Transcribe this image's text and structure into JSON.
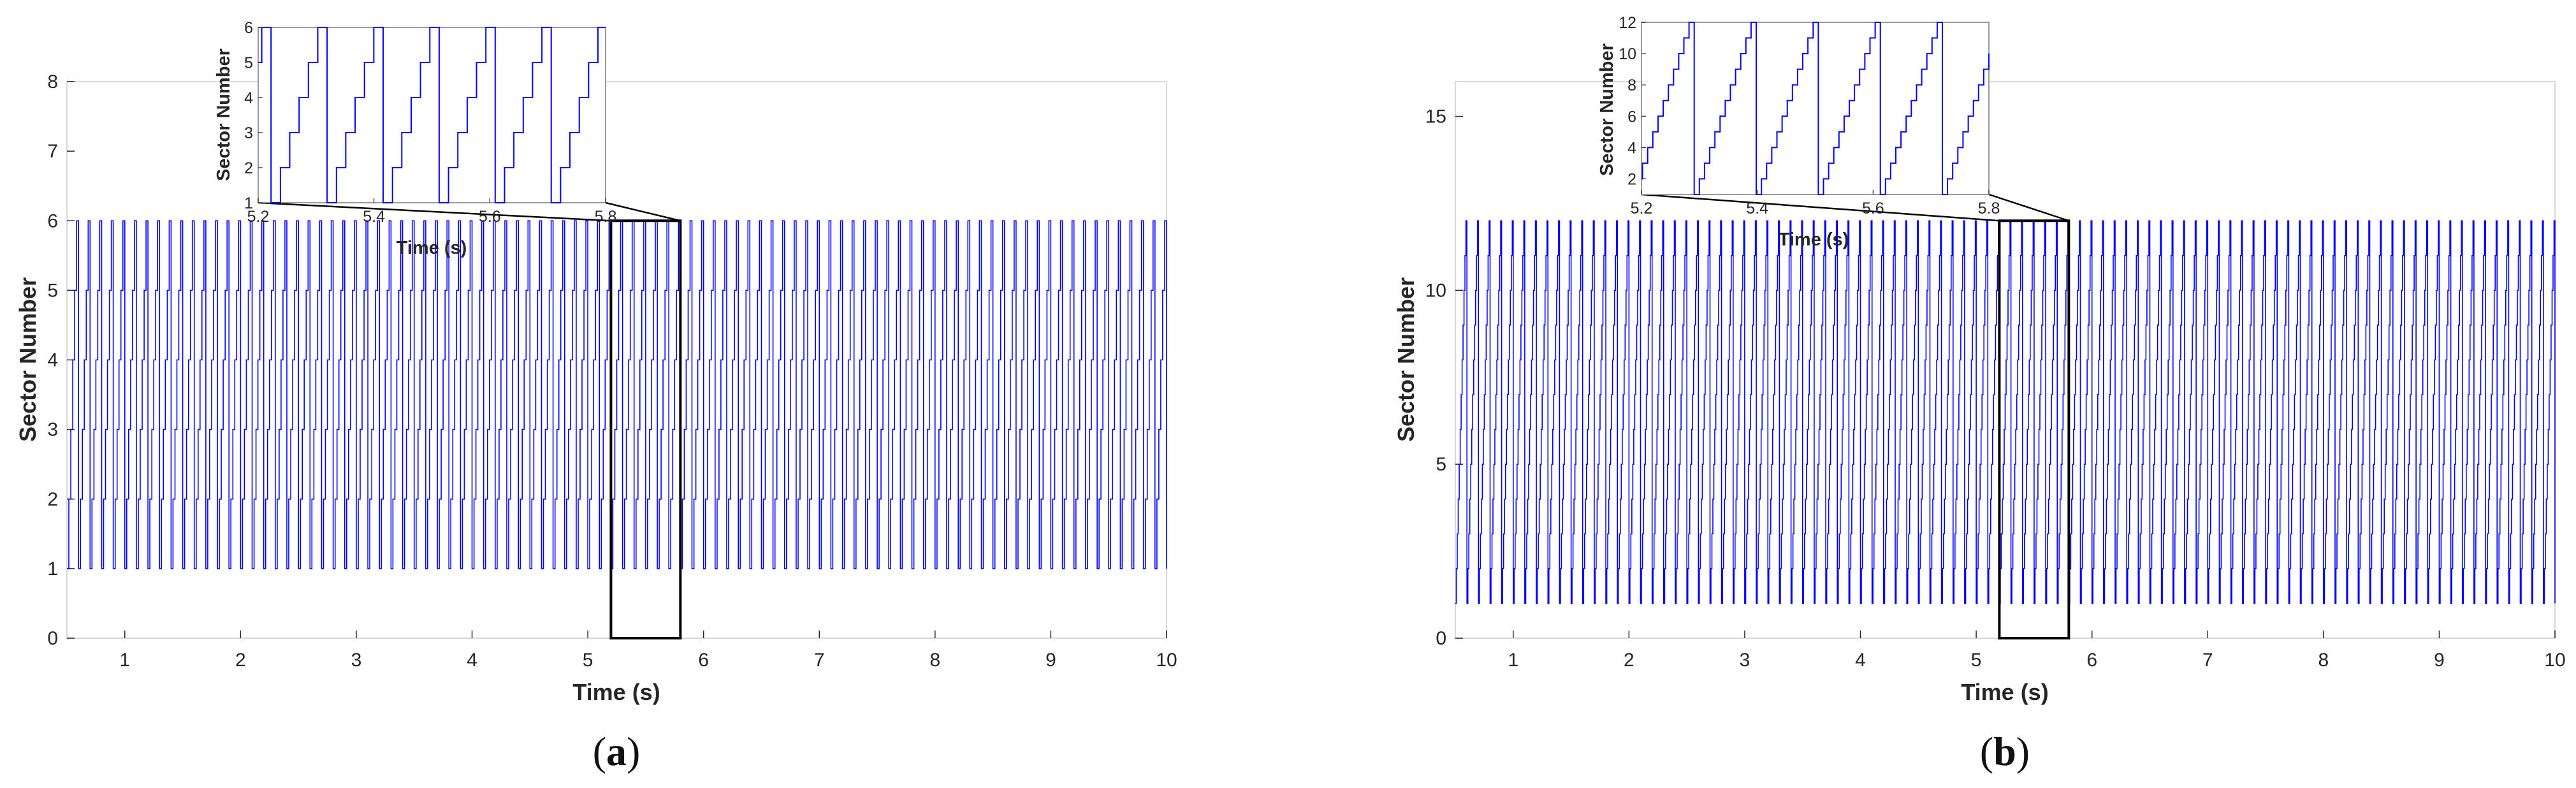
{
  "chart_data": [
    {
      "panel": "(a)",
      "caption_letter": "a",
      "type": "line",
      "xlabel": "Time (s)",
      "ylabel": "Sector Number",
      "xlim": [
        0.5,
        10
      ],
      "ylim": [
        0,
        8
      ],
      "xticks": [
        "1",
        "2",
        "3",
        "4",
        "5",
        "6",
        "7",
        "8",
        "9",
        "10"
      ],
      "yticks": [
        "0",
        "1",
        "2",
        "3",
        "4",
        "5",
        "6",
        "7",
        "8"
      ],
      "signal": {
        "min_sector": 1,
        "max_sector": 6,
        "cycles_shown": 95,
        "line_color": "#0000ff"
      },
      "zoom_box": {
        "x": [
          5.2,
          5.8
        ],
        "y": [
          0,
          6
        ]
      },
      "inset": {
        "xlabel": "Time (s)",
        "ylabel": "Sector Number",
        "xlim": [
          5.2,
          5.8
        ],
        "ylim": [
          1,
          6
        ],
        "xticks": [
          "5.2",
          "5.4",
          "5.6",
          "5.8"
        ],
        "yticks": [
          "1",
          "2",
          "3",
          "4",
          "5",
          "6"
        ],
        "cycles_shown": 6.2,
        "phase": 0.77
      }
    },
    {
      "panel": "(b)",
      "caption_letter": "b",
      "type": "line",
      "xlabel": "Time (s)",
      "ylabel": "Sector Number",
      "xlim": [
        0.5,
        10
      ],
      "ylim": [
        0,
        16
      ],
      "xticks": [
        "1",
        "2",
        "3",
        "4",
        "5",
        "6",
        "7",
        "8",
        "9",
        "10"
      ],
      "yticks": [
        "0",
        "5",
        "10",
        "15"
      ],
      "signal": {
        "min_sector": 1,
        "max_sector": 12,
        "cycles_shown": 95,
        "line_color": "#0000ff"
      },
      "zoom_box": {
        "x": [
          5.2,
          5.8
        ],
        "y": [
          0,
          12
        ]
      },
      "inset": {
        "xlabel": "Time (s)",
        "ylabel": "Sector Number",
        "xlim": [
          5.2,
          5.8
        ],
        "ylim": [
          1,
          12
        ],
        "xticks": [
          "5.2",
          "5.4",
          "5.6",
          "5.8"
        ],
        "yticks": [
          "2",
          "4",
          "6",
          "8",
          "10",
          "12"
        ],
        "cycles_shown": 5.6,
        "phase": 0.15
      }
    }
  ]
}
